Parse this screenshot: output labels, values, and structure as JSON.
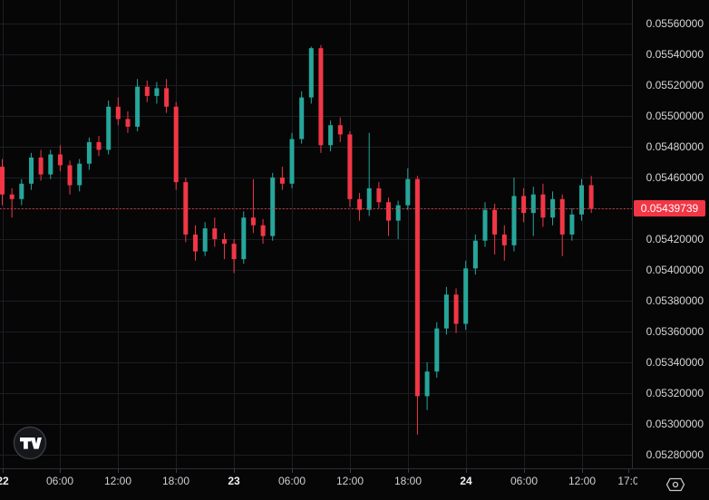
{
  "widget": {
    "kind": "candlestick-price-chart",
    "theme": "dark"
  },
  "colors": {
    "background": "#060607",
    "grid": "#1d1e22",
    "up": "#26a69a",
    "down": "#f23645",
    "price_line": "#f23645",
    "label_bg": "#f23645",
    "label_text": "#ffffff",
    "axis_text": "#d5d6d8",
    "axis_text_strong": "#f0f1f2",
    "axis_border": "#2b2d33",
    "tick_mark": "#3a3c42",
    "logo_ring": "rgba(125,128,137,0.4)",
    "logo_fill": "#16171a",
    "logo_glyph": "#ffffff",
    "icon_stroke": "#c9cacc"
  },
  "price_axis": {
    "labels": [
      "0.05560000",
      "0.05540000",
      "0.05520000",
      "0.05500000",
      "0.05480000",
      "0.05460000",
      "0.05440000",
      "0.05420000",
      "0.05400000",
      "0.05380000",
      "0.05360000",
      "0.05340000",
      "0.05320000",
      "0.05300000",
      "0.05280000"
    ],
    "hidden_by_tag": "0.05440000",
    "last_price_label": "0.05439739",
    "last_price_value": 0.0543974
  },
  "time_axis": {
    "ticks": [
      {
        "label": "22",
        "i": 0,
        "day": true
      },
      {
        "label": "06:00",
        "i": 6
      },
      {
        "label": "12:00",
        "i": 12
      },
      {
        "label": "18:00",
        "i": 18
      },
      {
        "label": "23",
        "i": 24,
        "day": true
      },
      {
        "label": "06:00",
        "i": 30
      },
      {
        "label": "12:00",
        "i": 36
      },
      {
        "label": "18:00",
        "i": 42
      },
      {
        "label": "24",
        "i": 48,
        "day": true
      },
      {
        "label": "06:00",
        "i": 54
      },
      {
        "label": "12:00",
        "i": 60
      },
      {
        "label": "17:0",
        "i": 64.8,
        "grid": false
      }
    ]
  },
  "chart_data": {
    "type": "candlestick",
    "interval": "1h",
    "first_bar_time": "22 00:00",
    "last_bar_time": "24 13:00",
    "ylim": [
      0.0528,
      0.0556
    ],
    "price_step": 0.0002,
    "grid": "on",
    "last_close": 0.0543974,
    "candles_ohlc": [
      [
        0.05467,
        0.05472,
        0.05442,
        0.05449
      ],
      [
        0.05449,
        0.05453,
        0.05434,
        0.05446
      ],
      [
        0.05446,
        0.05459,
        0.05442,
        0.05456
      ],
      [
        0.05456,
        0.05476,
        0.05452,
        0.05473
      ],
      [
        0.05473,
        0.05478,
        0.05458,
        0.05462
      ],
      [
        0.05462,
        0.05478,
        0.05459,
        0.05475
      ],
      [
        0.05475,
        0.05481,
        0.05464,
        0.05468
      ],
      [
        0.05468,
        0.05471,
        0.05449,
        0.05455
      ],
      [
        0.05455,
        0.05472,
        0.05451,
        0.05469
      ],
      [
        0.05469,
        0.05486,
        0.05465,
        0.05483
      ],
      [
        0.05483,
        0.05487,
        0.05474,
        0.05478
      ],
      [
        0.05478,
        0.0551,
        0.05475,
        0.05506
      ],
      [
        0.05506,
        0.05512,
        0.05494,
        0.05498
      ],
      [
        0.05498,
        0.05503,
        0.05489,
        0.05493
      ],
      [
        0.05493,
        0.05524,
        0.0549,
        0.05519
      ],
      [
        0.05519,
        0.05523,
        0.05509,
        0.05513
      ],
      [
        0.05513,
        0.05522,
        0.05508,
        0.05518
      ],
      [
        0.05518,
        0.05524,
        0.05502,
        0.05506
      ],
      [
        0.05506,
        0.05509,
        0.05452,
        0.05457
      ],
      [
        0.05457,
        0.0546,
        0.05418,
        0.05423
      ],
      [
        0.05423,
        0.05429,
        0.05406,
        0.05412
      ],
      [
        0.05412,
        0.05431,
        0.05409,
        0.05427
      ],
      [
        0.05427,
        0.05434,
        0.05415,
        0.0542
      ],
      [
        0.0542,
        0.05424,
        0.05407,
        0.05417
      ],
      [
        0.05417,
        0.0542,
        0.05398,
        0.05407
      ],
      [
        0.05407,
        0.05438,
        0.05404,
        0.05434
      ],
      [
        0.05434,
        0.05459,
        0.05424,
        0.05429
      ],
      [
        0.05429,
        0.05433,
        0.05417,
        0.05422
      ],
      [
        0.05422,
        0.05463,
        0.05419,
        0.0546
      ],
      [
        0.0546,
        0.05467,
        0.05452,
        0.05456
      ],
      [
        0.05456,
        0.05489,
        0.05453,
        0.05485
      ],
      [
        0.05485,
        0.05516,
        0.05482,
        0.05512
      ],
      [
        0.05512,
        0.05545,
        0.05508,
        0.05544
      ],
      [
        0.05544,
        0.05546,
        0.05476,
        0.05481
      ],
      [
        0.05481,
        0.05497,
        0.05477,
        0.05494
      ],
      [
        0.05494,
        0.05499,
        0.05483,
        0.05488
      ],
      [
        0.05488,
        0.0549,
        0.05441,
        0.05446
      ],
      [
        0.05446,
        0.0545,
        0.05432,
        0.05439
      ],
      [
        0.05439,
        0.05489,
        0.05435,
        0.05453
      ],
      [
        0.05453,
        0.05457,
        0.0544,
        0.05444
      ],
      [
        0.05444,
        0.05447,
        0.05422,
        0.05432
      ],
      [
        0.05432,
        0.05445,
        0.0542,
        0.05442
      ],
      [
        0.05442,
        0.05466,
        0.05439,
        0.05459
      ],
      [
        0.05459,
        0.05461,
        0.05293,
        0.05318
      ],
      [
        0.05318,
        0.0534,
        0.05309,
        0.05334
      ],
      [
        0.05334,
        0.05366,
        0.0533,
        0.05362
      ],
      [
        0.05362,
        0.05389,
        0.05358,
        0.05384
      ],
      [
        0.05384,
        0.05388,
        0.05359,
        0.05365
      ],
      [
        0.05365,
        0.05406,
        0.05361,
        0.05401
      ],
      [
        0.05401,
        0.05423,
        0.05397,
        0.05419
      ],
      [
        0.05419,
        0.05444,
        0.05415,
        0.05439
      ],
      [
        0.05439,
        0.05443,
        0.0541,
        0.05423
      ],
      [
        0.05423,
        0.05429,
        0.05406,
        0.05416
      ],
      [
        0.05416,
        0.0546,
        0.05412,
        0.05448
      ],
      [
        0.05448,
        0.05453,
        0.05431,
        0.05437
      ],
      [
        0.05437,
        0.05454,
        0.05422,
        0.05449
      ],
      [
        0.05449,
        0.05456,
        0.05428,
        0.05434
      ],
      [
        0.05434,
        0.05451,
        0.05429,
        0.05446
      ],
      [
        0.05446,
        0.05449,
        0.05409,
        0.05423
      ],
      [
        0.05423,
        0.0544,
        0.05419,
        0.05436
      ],
      [
        0.05436,
        0.05459,
        0.05432,
        0.05455
      ],
      [
        0.05455,
        0.05461,
        0.05437,
        0.0543974
      ]
    ]
  },
  "branding": {
    "logo_name": "tradingview-logo"
  },
  "icons": {
    "bottom_right": "hexagon-settings"
  }
}
